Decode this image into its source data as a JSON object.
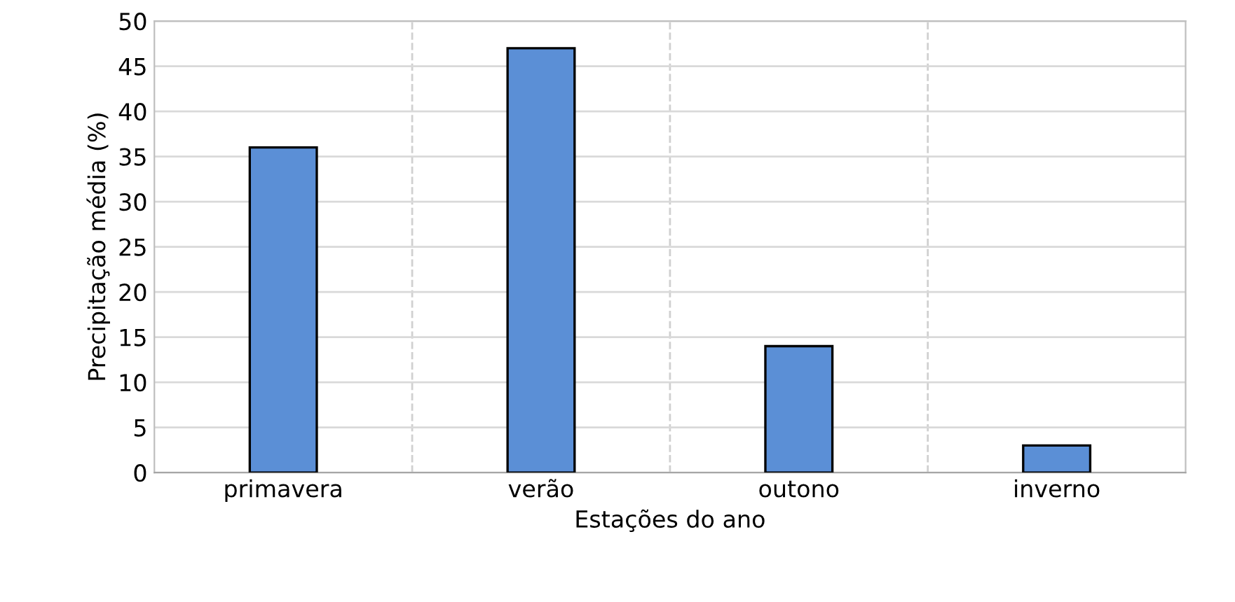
{
  "chart_data": {
    "type": "bar",
    "xlabel": "Estações do ano",
    "ylabel": "Precipitação média (%)",
    "categories": [
      "primavera",
      "verão",
      "outono",
      "inverno"
    ],
    "values": [
      36,
      47,
      14,
      3
    ],
    "color": "#5b8fd6",
    "ylim": [
      0,
      50
    ],
    "yticks": [
      0,
      5,
      10,
      15,
      20,
      25,
      30,
      35,
      40,
      45,
      50
    ],
    "grid": true,
    "legend": false
  }
}
